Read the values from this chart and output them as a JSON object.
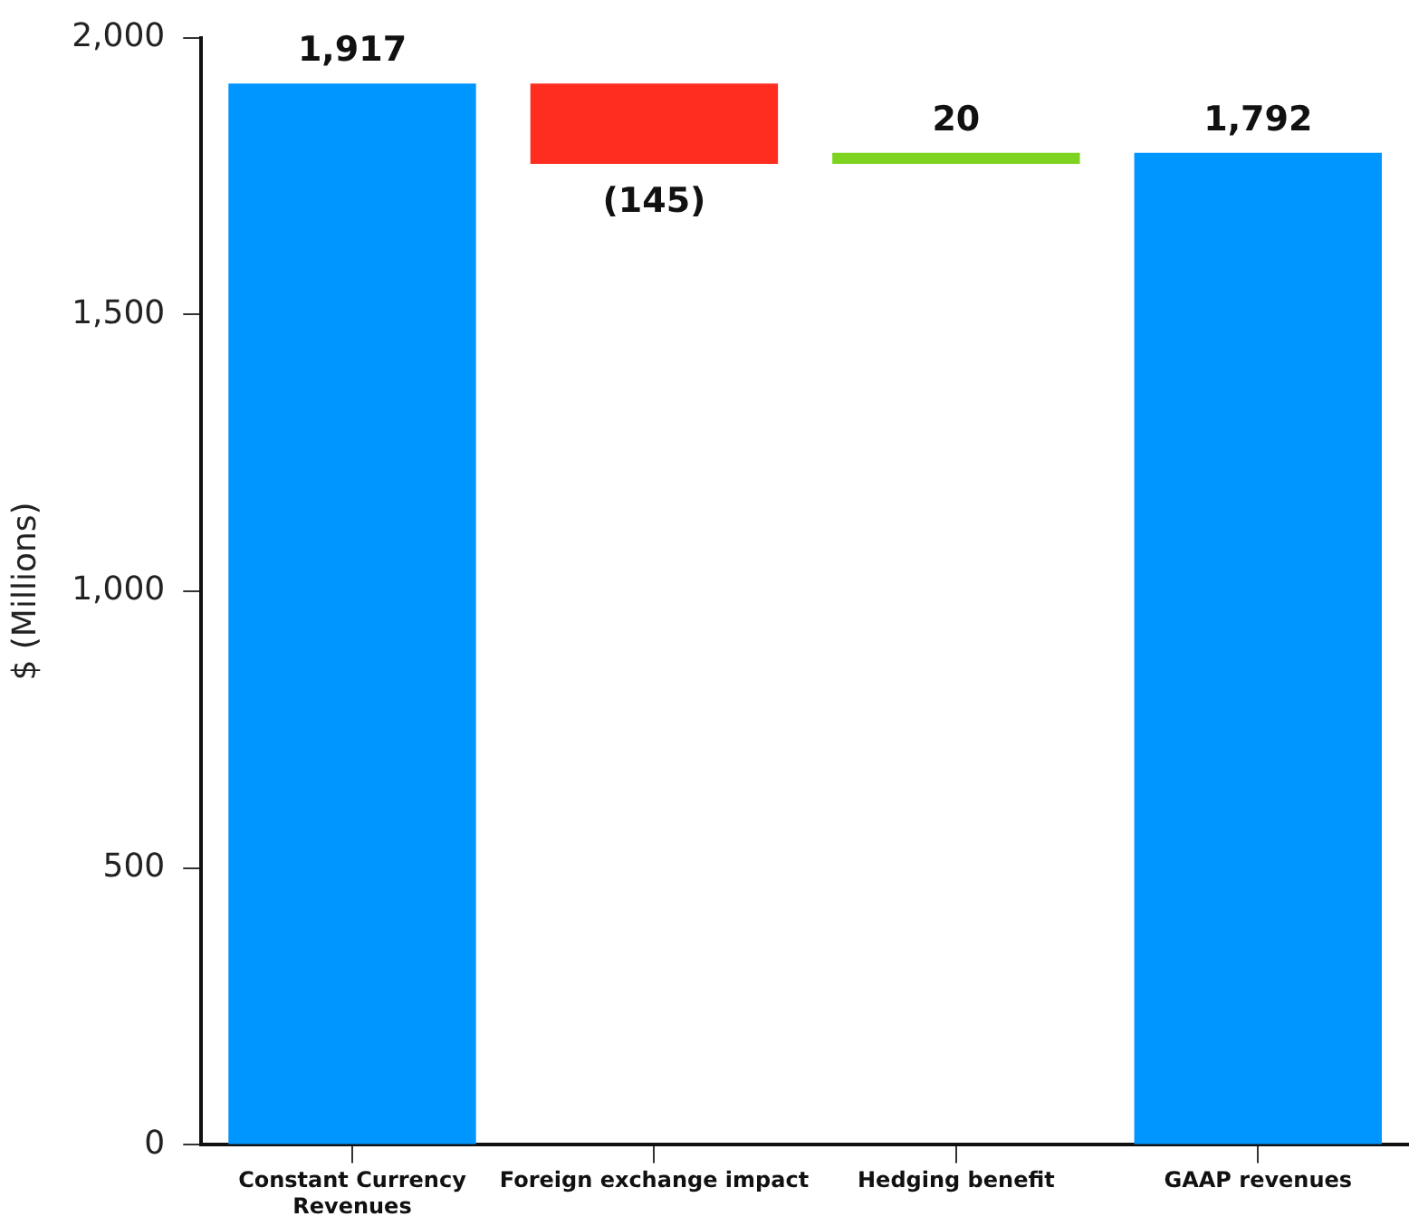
{
  "chart_data": {
    "type": "bar",
    "ylabel": "$ (Millions)",
    "categories": [
      "Constant Currency Revenues",
      "Foreign exchange impact",
      "Hedging benefit",
      "GAAP revenues"
    ],
    "values": [
      1917,
      -145,
      20,
      1792
    ],
    "base": [
      0,
      1917,
      1772,
      0
    ],
    "colors": [
      "#0096ff",
      "#ff2d1f",
      "#7ed321",
      "#0096ff"
    ],
    "value_labels": [
      "1,917",
      "(145)",
      "20",
      "1,792"
    ],
    "ylim": [
      0,
      2000
    ],
    "yticks": [
      0,
      500,
      {
        "value": 1000,
        "label": "1,000"
      },
      {
        "value": 1500,
        "label": "1,500"
      },
      {
        "value": 2000,
        "label": "2,000"
      }
    ],
    "legend": false
  }
}
